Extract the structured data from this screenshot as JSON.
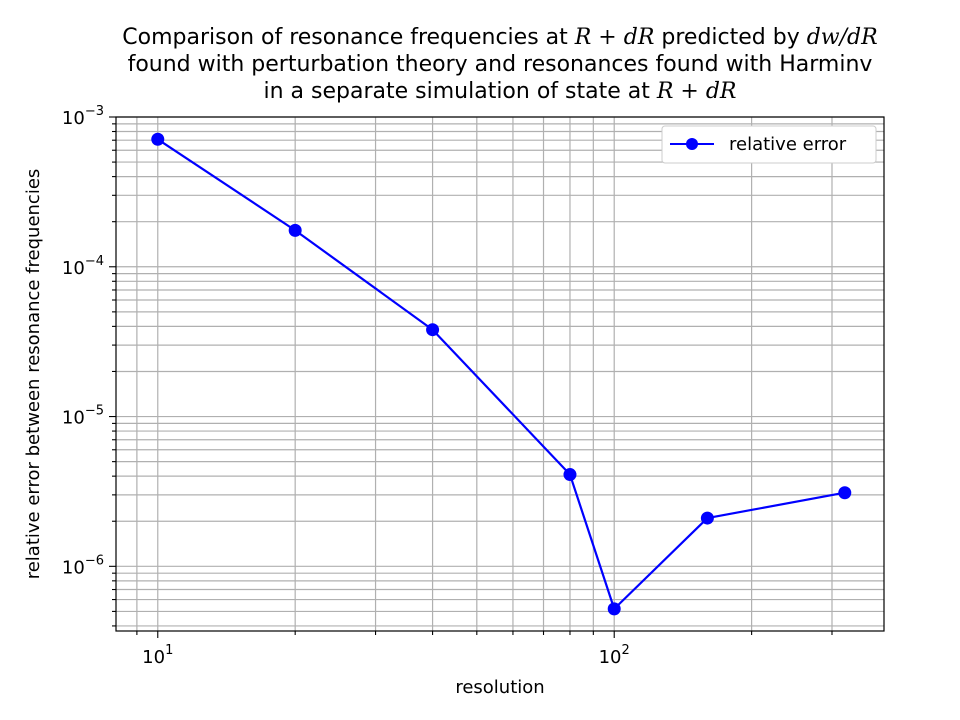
{
  "chart_data": {
    "type": "line",
    "title_lines": [
      [
        "Comparison of resonance frequencies at ",
        {
          "math": "R + dR"
        },
        " predicted by ",
        {
          "math": "dw/dR"
        }
      ],
      [
        "found with perturbation theory and resonances found with Harminv"
      ],
      [
        "in a separate simulation of state at ",
        {
          "math": "R + dR"
        }
      ]
    ],
    "xlabel": "resolution",
    "ylabel": "relative error between resonance frequencies",
    "xscale": "log",
    "yscale": "log",
    "xlim": [
      8.1,
      390
    ],
    "ylim": [
      3.7e-07,
      0.001
    ],
    "xticks": [
      {
        "value": 10,
        "base": "10",
        "exp": "1"
      },
      {
        "value": 100,
        "base": "10",
        "exp": "2"
      }
    ],
    "yticks": [
      {
        "value": 1e-06,
        "base": "10",
        "exp": "−6"
      },
      {
        "value": 1e-05,
        "base": "10",
        "exp": "−5"
      },
      {
        "value": 0.0001,
        "base": "10",
        "exp": "−4"
      },
      {
        "value": 0.001,
        "base": "10",
        "exp": "−3"
      }
    ],
    "grid": "both major and minor",
    "legend_position": "top-right",
    "series": [
      {
        "name": "relative error",
        "color": "#0000ff",
        "marker": "circle",
        "points": [
          {
            "x": 10,
            "y": 0.00071
          },
          {
            "x": 20,
            "y": 0.000175
          },
          {
            "x": 40,
            "y": 3.8e-05
          },
          {
            "x": 80,
            "y": 4.1e-06
          },
          {
            "x": 100,
            "y": 5.2e-07
          },
          {
            "x": 160,
            "y": 2.1e-06
          },
          {
            "x": 320,
            "y": 3.1e-06
          }
        ]
      }
    ]
  }
}
